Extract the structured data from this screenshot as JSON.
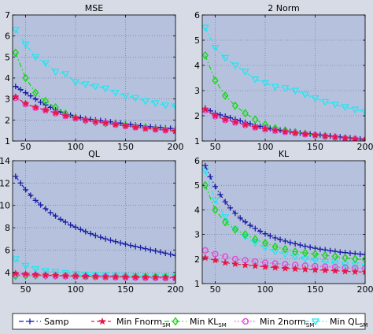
{
  "chart_data": [
    {
      "type": "line",
      "title": "MSE",
      "xlim": [
        37,
        200
      ],
      "ylim": [
        1,
        7
      ],
      "xticks": [
        50,
        100,
        150,
        200
      ],
      "yticks": [
        1,
        2,
        3,
        4,
        5,
        6,
        7
      ],
      "grid": true,
      "x": [
        40,
        45,
        50,
        55,
        60,
        65,
        70,
        75,
        80,
        85,
        90,
        95,
        100,
        105,
        110,
        115,
        120,
        125,
        130,
        135,
        140,
        145,
        150,
        155,
        160,
        165,
        170,
        175,
        180,
        185,
        190,
        195,
        200
      ],
      "series": [
        {
          "key": "samp",
          "x": [
            40,
            45,
            50,
            55,
            60,
            65,
            70,
            75,
            80,
            85,
            90,
            95,
            100,
            105,
            110,
            115,
            120,
            125,
            130,
            135,
            140,
            145,
            150,
            155,
            160,
            165,
            170,
            175,
            180,
            185,
            190,
            195,
            200
          ],
          "values": [
            3.6,
            3.45,
            3.3,
            3.15,
            3.0,
            2.85,
            2.72,
            2.6,
            2.48,
            2.38,
            2.3,
            2.23,
            2.16,
            2.11,
            2.07,
            2.03,
            2.0,
            1.97,
            1.94,
            1.91,
            1.88,
            1.85,
            1.82,
            1.79,
            1.76,
            1.73,
            1.7,
            1.68,
            1.66,
            1.64,
            1.62,
            1.6,
            1.58
          ]
        },
        {
          "key": "fnorm",
          "x": [
            40,
            50,
            60,
            70,
            80,
            90,
            100,
            110,
            120,
            130,
            140,
            150,
            160,
            170,
            180,
            190,
            200
          ],
          "values": [
            3.1,
            2.78,
            2.6,
            2.48,
            2.34,
            2.2,
            2.1,
            2.0,
            1.92,
            1.86,
            1.79,
            1.72,
            1.66,
            1.6,
            1.56,
            1.52,
            1.48
          ]
        },
        {
          "key": "kl",
          "x": [
            40,
            50,
            60,
            70,
            80,
            90,
            100,
            110,
            120,
            130,
            140,
            150,
            160,
            170,
            180,
            190,
            200
          ],
          "values": [
            5.2,
            4.0,
            3.3,
            2.9,
            2.6,
            2.3,
            2.1,
            1.98,
            1.9,
            1.84,
            1.8,
            1.74,
            1.69,
            1.64,
            1.58,
            1.53,
            1.48
          ]
        },
        {
          "key": "twonorm",
          "x": [
            40,
            50,
            60,
            70,
            80,
            90,
            100,
            110,
            120,
            130,
            140,
            150,
            160,
            170,
            180,
            190,
            200
          ],
          "values": [
            3.05,
            2.76,
            2.58,
            2.46,
            2.32,
            2.19,
            2.08,
            1.99,
            1.91,
            1.85,
            1.78,
            1.71,
            1.65,
            1.6,
            1.55,
            1.51,
            1.47
          ]
        },
        {
          "key": "ql",
          "x": [
            40,
            50,
            60,
            70,
            80,
            90,
            100,
            110,
            120,
            130,
            140,
            150,
            160,
            170,
            180,
            190,
            200
          ],
          "values": [
            6.3,
            5.6,
            5.0,
            4.7,
            4.3,
            4.2,
            3.8,
            3.7,
            3.6,
            3.5,
            3.3,
            3.15,
            3.05,
            2.9,
            2.8,
            2.7,
            2.65
          ]
        }
      ]
    },
    {
      "type": "line",
      "title": "2 Norm",
      "xlim": [
        37,
        200
      ],
      "ylim": [
        1,
        6
      ],
      "xticks": [
        50,
        100,
        150,
        200
      ],
      "yticks": [
        1,
        2,
        3,
        4,
        5,
        6
      ],
      "grid": true,
      "series": [
        {
          "key": "samp",
          "x": [
            40,
            45,
            50,
            55,
            60,
            65,
            70,
            75,
            80,
            85,
            90,
            95,
            100,
            105,
            110,
            115,
            120,
            125,
            130,
            135,
            140,
            145,
            150,
            155,
            160,
            165,
            170,
            175,
            180,
            185,
            190,
            195,
            200
          ],
          "values": [
            2.3,
            2.2,
            2.1,
            2.04,
            1.98,
            1.92,
            1.86,
            1.8,
            1.74,
            1.68,
            1.63,
            1.58,
            1.54,
            1.5,
            1.46,
            1.43,
            1.4,
            1.37,
            1.34,
            1.32,
            1.3,
            1.28,
            1.26,
            1.24,
            1.22,
            1.2,
            1.18,
            1.16,
            1.14,
            1.12,
            1.1,
            1.08,
            1.06
          ]
        },
        {
          "key": "fnorm",
          "x": [
            40,
            50,
            60,
            70,
            80,
            90,
            100,
            110,
            120,
            130,
            140,
            150,
            160,
            170,
            180,
            190,
            200
          ],
          "values": [
            2.25,
            2.0,
            1.85,
            1.75,
            1.65,
            1.55,
            1.48,
            1.42,
            1.37,
            1.32,
            1.28,
            1.24,
            1.2,
            1.16,
            1.12,
            1.08,
            1.05
          ]
        },
        {
          "key": "kl",
          "x": [
            40,
            50,
            60,
            70,
            80,
            90,
            100,
            110,
            120,
            130,
            140,
            150,
            160,
            170,
            180,
            190,
            200
          ],
          "values": [
            4.4,
            3.4,
            2.8,
            2.4,
            2.1,
            1.85,
            1.65,
            1.5,
            1.42,
            1.35,
            1.29,
            1.24,
            1.19,
            1.15,
            1.11,
            1.07,
            1.03
          ]
        },
        {
          "key": "twonorm",
          "x": [
            40,
            50,
            60,
            70,
            80,
            90,
            100,
            110,
            120,
            130,
            140,
            150,
            160,
            170,
            180,
            190,
            200
          ],
          "values": [
            2.22,
            1.98,
            1.83,
            1.73,
            1.63,
            1.54,
            1.47,
            1.41,
            1.36,
            1.31,
            1.27,
            1.23,
            1.19,
            1.15,
            1.11,
            1.08,
            1.04
          ]
        },
        {
          "key": "ql",
          "x": [
            40,
            50,
            60,
            70,
            80,
            90,
            100,
            110,
            120,
            130,
            140,
            150,
            160,
            170,
            180,
            190,
            200
          ],
          "values": [
            5.5,
            4.7,
            4.3,
            4.0,
            3.75,
            3.45,
            3.3,
            3.15,
            3.1,
            3.0,
            2.85,
            2.7,
            2.55,
            2.45,
            2.35,
            2.25,
            2.15
          ]
        }
      ]
    },
    {
      "type": "line",
      "title": "QL",
      "xlim": [
        37,
        200
      ],
      "ylim": [
        3,
        14
      ],
      "xticks": [
        50,
        100,
        150,
        200
      ],
      "yticks": [
        4,
        6,
        8,
        10,
        12,
        14
      ],
      "grid": true,
      "series": [
        {
          "key": "samp",
          "x": [
            40,
            45,
            50,
            55,
            60,
            65,
            70,
            75,
            80,
            85,
            90,
            95,
            100,
            105,
            110,
            115,
            120,
            125,
            130,
            135,
            140,
            145,
            150,
            155,
            160,
            165,
            170,
            175,
            180,
            185,
            190,
            195,
            200
          ],
          "values": [
            12.6,
            12.0,
            11.4,
            10.9,
            10.45,
            10.05,
            9.7,
            9.35,
            9.05,
            8.75,
            8.5,
            8.25,
            8.05,
            7.85,
            7.65,
            7.48,
            7.3,
            7.15,
            7.0,
            6.88,
            6.76,
            6.64,
            6.53,
            6.42,
            6.32,
            6.22,
            6.12,
            6.02,
            5.92,
            5.82,
            5.72,
            5.62,
            5.52
          ]
        },
        {
          "key": "fnorm",
          "x": [
            40,
            50,
            60,
            70,
            80,
            90,
            100,
            110,
            120,
            130,
            140,
            150,
            160,
            170,
            180,
            190,
            200
          ],
          "values": [
            3.9,
            3.85,
            3.8,
            3.76,
            3.73,
            3.7,
            3.68,
            3.66,
            3.64,
            3.62,
            3.61,
            3.6,
            3.59,
            3.58,
            3.57,
            3.56,
            3.55
          ]
        },
        {
          "key": "kl",
          "x": [
            40,
            50,
            60,
            70,
            80,
            90,
            100,
            110,
            120,
            130,
            140,
            150,
            160,
            170,
            180,
            190,
            200
          ],
          "values": [
            3.7,
            3.72,
            3.72,
            3.71,
            3.7,
            3.69,
            3.68,
            3.66,
            3.65,
            3.63,
            3.62,
            3.61,
            3.6,
            3.59,
            3.58,
            3.57,
            3.56
          ]
        },
        {
          "key": "twonorm",
          "x": [
            40,
            50,
            60,
            70,
            80,
            90,
            100,
            110,
            120,
            130,
            140,
            150,
            160,
            170,
            180,
            190,
            200
          ],
          "values": [
            3.8,
            3.78,
            3.75,
            3.72,
            3.7,
            3.67,
            3.64,
            3.62,
            3.6,
            3.58,
            3.56,
            3.55,
            3.53,
            3.51,
            3.5,
            3.48,
            3.46
          ]
        },
        {
          "key": "ql",
          "x": [
            40,
            50,
            60,
            70,
            80,
            90,
            100,
            110,
            120,
            130,
            140,
            150,
            160,
            170,
            180,
            190,
            200
          ],
          "values": [
            5.2,
            4.6,
            4.3,
            4.15,
            4.05,
            3.95,
            3.88,
            3.82,
            3.78,
            3.75,
            3.72,
            3.7,
            3.68,
            3.66,
            3.65,
            3.64,
            3.63
          ]
        }
      ]
    },
    {
      "type": "line",
      "title": "KL",
      "xlim": [
        37,
        200
      ],
      "ylim": [
        1,
        6
      ],
      "xticks": [
        50,
        100,
        150,
        200
      ],
      "yticks": [
        1,
        2,
        3,
        4,
        5,
        6
      ],
      "grid": true,
      "series": [
        {
          "key": "samp",
          "x": [
            40,
            45,
            50,
            55,
            60,
            65,
            70,
            75,
            80,
            85,
            90,
            95,
            100,
            105,
            110,
            115,
            120,
            125,
            130,
            135,
            140,
            145,
            150,
            155,
            160,
            165,
            170,
            175,
            180,
            185,
            190,
            195,
            200
          ],
          "values": [
            5.8,
            5.35,
            4.95,
            4.62,
            4.33,
            4.08,
            3.86,
            3.67,
            3.51,
            3.37,
            3.24,
            3.13,
            3.03,
            2.94,
            2.86,
            2.79,
            2.73,
            2.67,
            2.62,
            2.57,
            2.52,
            2.48,
            2.44,
            2.4,
            2.37,
            2.34,
            2.31,
            2.28,
            2.26,
            2.24,
            2.22,
            2.2,
            2.18
          ]
        },
        {
          "key": "fnorm",
          "x": [
            40,
            50,
            60,
            70,
            80,
            90,
            100,
            110,
            120,
            130,
            140,
            150,
            160,
            170,
            180,
            190,
            200
          ],
          "values": [
            2.05,
            1.95,
            1.85,
            1.8,
            1.75,
            1.72,
            1.68,
            1.65,
            1.62,
            1.6,
            1.58,
            1.56,
            1.54,
            1.52,
            1.5,
            1.48,
            1.47
          ]
        },
        {
          "key": "kl",
          "x": [
            40,
            50,
            60,
            70,
            80,
            90,
            100,
            110,
            120,
            130,
            140,
            150,
            160,
            170,
            180,
            190,
            200
          ],
          "values": [
            5.0,
            4.0,
            3.5,
            3.2,
            3.0,
            2.8,
            2.65,
            2.5,
            2.4,
            2.3,
            2.25,
            2.2,
            2.15,
            2.1,
            2.05,
            2.0,
            1.98
          ]
        },
        {
          "key": "twonorm",
          "x": [
            40,
            50,
            60,
            70,
            80,
            90,
            100,
            110,
            120,
            130,
            140,
            150,
            160,
            170,
            180,
            190,
            200
          ],
          "values": [
            2.35,
            2.2,
            2.1,
            2.0,
            1.95,
            1.9,
            1.85,
            1.82,
            1.79,
            1.76,
            1.73,
            1.71,
            1.69,
            1.67,
            1.65,
            1.63,
            1.62
          ]
        },
        {
          "key": "ql",
          "x": [
            40,
            50,
            60,
            70,
            80,
            90,
            100,
            110,
            120,
            130,
            140,
            150,
            160,
            170,
            180,
            190,
            200
          ],
          "values": [
            5.6,
            4.4,
            3.7,
            3.2,
            2.9,
            2.65,
            2.45,
            2.3,
            2.2,
            2.1,
            2.0,
            1.95,
            1.88,
            1.83,
            1.78,
            1.74,
            1.7
          ]
        }
      ]
    }
  ],
  "legend": {
    "placement": "bottom",
    "items": [
      {
        "key": "samp",
        "label": "Samp",
        "sub": "",
        "color": "#1a1fa6",
        "marker": "plus",
        "dash": "6,3,1.5,3"
      },
      {
        "key": "fnorm",
        "label": "Min Fnorm",
        "sub": "SM",
        "color": "#e8174a",
        "marker": "star",
        "dash": "4,3"
      },
      {
        "key": "kl",
        "label": "Min KL",
        "sub": "SM",
        "color": "#16d61a",
        "marker": "diamond",
        "dash": "6,3,1.5,3"
      },
      {
        "key": "twonorm",
        "label": "Min 2norm",
        "sub": "SM",
        "color": "#e04ad6",
        "marker": "circle",
        "dash": "1.5,2.5"
      },
      {
        "key": "ql",
        "label": "Min QL",
        "sub": "SM",
        "color": "#1ee6f2",
        "marker": "triangle",
        "dash": "6,3,1.5,3"
      }
    ]
  },
  "colors": {
    "figure_bg": "#d7dbe6",
    "axes_bg": "#b6c2dd",
    "grid": "#5f6d8c"
  }
}
